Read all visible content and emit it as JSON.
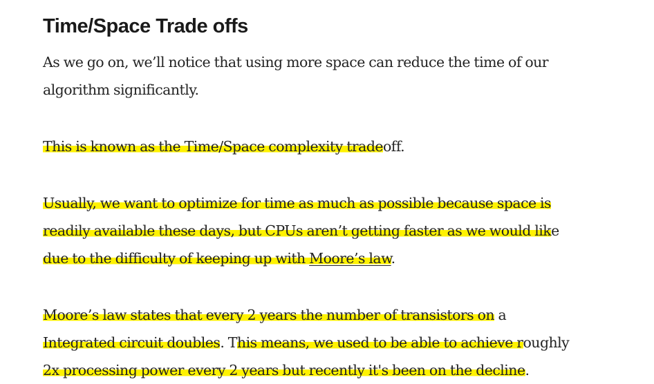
{
  "section": {
    "heading": "Time/Space Trade offs"
  },
  "p1": {
    "line1": "As we go on, we’ll notice that using more space can reduce the time of our",
    "line2": "algorithm significantly."
  },
  "p2": {
    "a": "This is known as the Time/Space complexity trade",
    "b": "off."
  },
  "p3": {
    "l1": "Usually, we want to optimize for time as much as possible because space is",
    "l2a": "readily available these days, but CPUs aren’t getting faster as we would lik",
    "l2b": "e",
    "l3a": "due to the difficulty of keeping up with ",
    "link": "Moore’s law",
    "l3b": "."
  },
  "p4": {
    "l1a": "Moore’s law states that every 2 years the number of transistors on",
    "l1b": " a",
    "l2a": "Integrated circuit doubles",
    "l2b": ". T",
    "l2c": "his means, we used to be able to achieve r",
    "l2d": "oughly",
    "l3a": "2x processing power every 2 years but recently it's been on the decline",
    "l3b": "."
  },
  "colors": {
    "highlight": "#fff200",
    "text": "#242424"
  }
}
